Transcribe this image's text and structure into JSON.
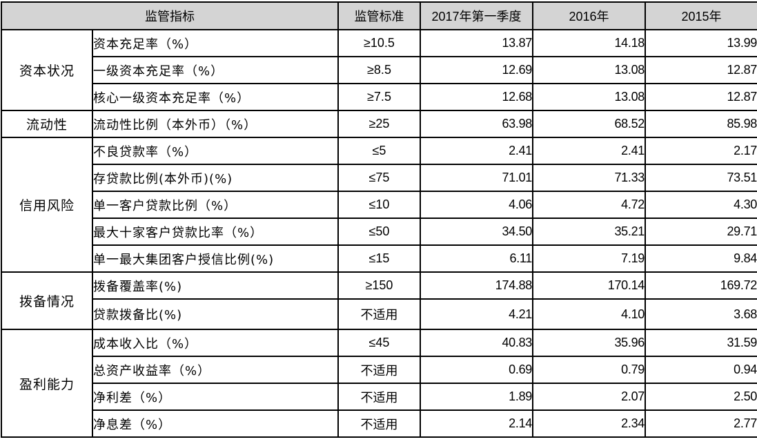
{
  "headers": {
    "indicator": "监管指标",
    "standard": "监管标准",
    "q1_2017": "2017年第一季度",
    "y2016": "2016年",
    "y2015": "2015年"
  },
  "categories": {
    "capital": "资本状况",
    "liquidity": "流动性",
    "credit": "信用风险",
    "provision": "拨备情况",
    "profit": "盈利能力"
  },
  "rows": [
    {
      "name": "资本充足率（%）",
      "std": "≥10.5",
      "q1_2017": "13.87",
      "y2016": "14.18",
      "y2015": "13.99"
    },
    {
      "name": "一级资本充足率（%）",
      "std": "≥8.5",
      "q1_2017": "12.69",
      "y2016": "13.08",
      "y2015": "12.87"
    },
    {
      "name": "核心一级资本充足率（%）",
      "std": "≥7.5",
      "q1_2017": "12.68",
      "y2016": "13.08",
      "y2015": "12.87"
    },
    {
      "name": "流动性比例（本外币）（%）",
      "std": "≥25",
      "q1_2017": "63.98",
      "y2016": "68.52",
      "y2015": "85.98"
    },
    {
      "name": "不良贷款率（%）",
      "std": "≤5",
      "q1_2017": "2.41",
      "y2016": "2.41",
      "y2015": "2.17"
    },
    {
      "name": "存贷款比例(本外币)(%)",
      "std": "≤75",
      "q1_2017": "71.01",
      "y2016": "71.33",
      "y2015": "73.51"
    },
    {
      "name": "单一客户贷款比例（%）",
      "std": "≤10",
      "q1_2017": "4.06",
      "y2016": "4.72",
      "y2015": "4.30"
    },
    {
      "name": "最大十家客户贷款比率（%）",
      "std": "≤50",
      "q1_2017": "34.50",
      "y2016": "35.21",
      "y2015": "29.71"
    },
    {
      "name": "单一最大集团客户授信比例(%)",
      "std": "≤15",
      "q1_2017": "6.11",
      "y2016": "7.19",
      "y2015": "9.84"
    },
    {
      "name": "拨备覆盖率(%)",
      "std": "≥150",
      "q1_2017": "174.88",
      "y2016": "170.14",
      "y2015": "169.72"
    },
    {
      "name": "贷款拨备比(%)",
      "std": "不适用",
      "q1_2017": "4.21",
      "y2016": "4.10",
      "y2015": "3.68"
    },
    {
      "name": "成本收入比（%）",
      "std": "≤45",
      "q1_2017": "40.83",
      "y2016": "35.96",
      "y2015": "31.59"
    },
    {
      "name": "总资产收益率（%）",
      "std": "不适用",
      "q1_2017": "0.69",
      "y2016": "0.79",
      "y2015": "0.94"
    },
    {
      "name": "净利差（%）",
      "std": "不适用",
      "q1_2017": "1.89",
      "y2016": "2.07",
      "y2015": "2.50"
    },
    {
      "name": "净息差（%）",
      "std": "不适用",
      "q1_2017": "2.14",
      "y2016": "2.34",
      "y2015": "2.77"
    }
  ]
}
